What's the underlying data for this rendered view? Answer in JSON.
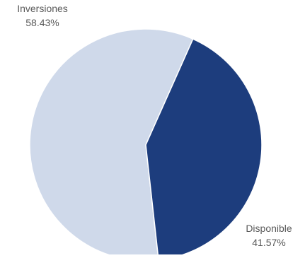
{
  "chart_data": {
    "type": "pie",
    "title": "",
    "slices": [
      {
        "label": "Inversiones",
        "value": 58.43,
        "value_label": "58.43%",
        "color": "#cfd9ea"
      },
      {
        "label": "Disponible",
        "value": 41.57,
        "value_label": "41.57%",
        "color": "#1d3d7d"
      }
    ],
    "start_angle_deg": -66,
    "direction": "counterclockwise",
    "labels_outside": true
  }
}
